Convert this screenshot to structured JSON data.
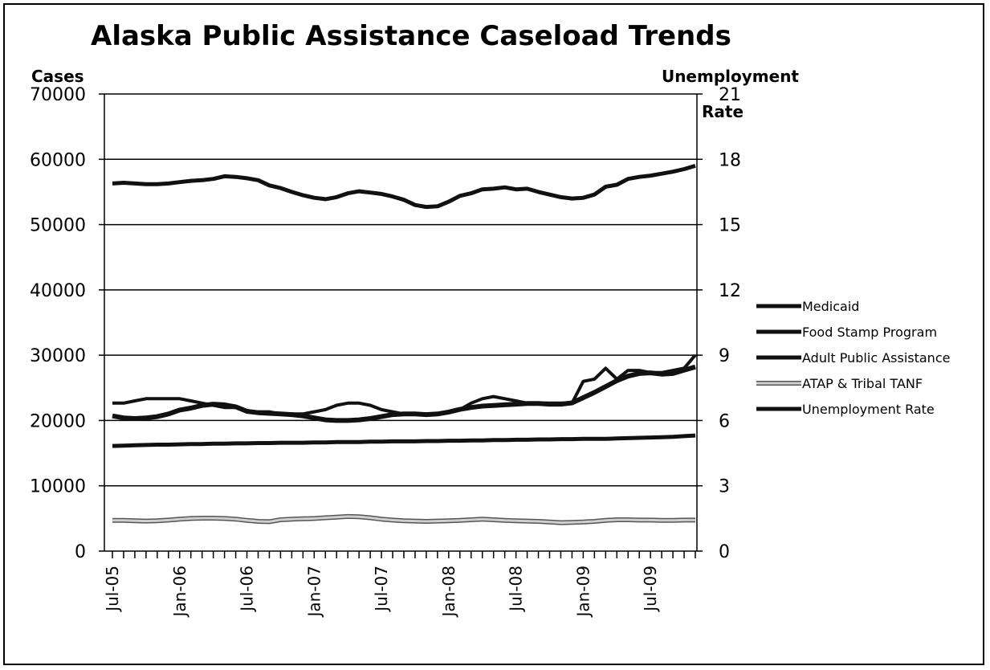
{
  "chart_data": {
    "type": "line",
    "title": "Alaska Public Assistance Caseload Trends",
    "ylabel": "Cases",
    "y2label": [
      "Unemployment",
      "Rate"
    ],
    "ylim": [
      0,
      70000
    ],
    "y2lim": [
      0,
      21
    ],
    "yticks": [
      "0",
      "10000",
      "20000",
      "30000",
      "40000",
      "50000",
      "60000",
      "70000"
    ],
    "y2ticks": [
      "0",
      "3",
      "6",
      "9",
      "12",
      "15",
      "18",
      "21"
    ],
    "xticks": [
      "Jul-05",
      "Jan-06",
      "Jul-06",
      "Jan-07",
      "Jul-07",
      "Jan-08",
      "Jul-08",
      "Jan-09",
      "Jul-09"
    ],
    "x": [
      "Jul-05",
      "Aug-05",
      "Sep-05",
      "Oct-05",
      "Nov-05",
      "Dec-05",
      "Jan-06",
      "Feb-06",
      "Mar-06",
      "Apr-06",
      "May-06",
      "Jun-06",
      "Jul-06",
      "Aug-06",
      "Sep-06",
      "Oct-06",
      "Nov-06",
      "Dec-06",
      "Jan-07",
      "Feb-07",
      "Mar-07",
      "Apr-07",
      "May-07",
      "Jun-07",
      "Jul-07",
      "Aug-07",
      "Sep-07",
      "Oct-07",
      "Nov-07",
      "Dec-07",
      "Jan-08",
      "Feb-08",
      "Mar-08",
      "Apr-08",
      "May-08",
      "Jun-08",
      "Jul-08",
      "Aug-08",
      "Sep-08",
      "Oct-08",
      "Nov-08",
      "Dec-08",
      "Jan-09",
      "Feb-09",
      "Mar-09",
      "Apr-09",
      "May-09",
      "Jun-09",
      "Jul-09",
      "Aug-09",
      "Sep-09",
      "Oct-09",
      "Nov-09"
    ],
    "legend_position": "right",
    "grid": true,
    "series": [
      {
        "name": "Medicaid",
        "axis": "left",
        "color": "#111111",
        "width": 5,
        "values": [
          56300,
          56400,
          56300,
          56200,
          56200,
          56300,
          56500,
          56700,
          56800,
          57000,
          57400,
          57300,
          57100,
          56800,
          56000,
          55600,
          55000,
          54500,
          54100,
          53900,
          54200,
          54800,
          55100,
          54900,
          54700,
          54300,
          53800,
          53000,
          52700,
          52800,
          53500,
          54400,
          54800,
          55400,
          55500,
          55700,
          55400,
          55500,
          55000,
          54600,
          54200,
          54000,
          54100,
          54600,
          55800,
          56100,
          57000,
          57300,
          57500,
          57800,
          58100,
          58500,
          59000
        ]
      },
      {
        "name": "Food Stamp Program",
        "axis": "left",
        "color": "#111111",
        "width": 6,
        "values": [
          20700,
          20400,
          20300,
          20400,
          20600,
          21000,
          21600,
          21900,
          22300,
          22500,
          22400,
          22100,
          21400,
          21200,
          21100,
          21000,
          20900,
          20700,
          20400,
          20100,
          20000,
          20000,
          20100,
          20300,
          20600,
          20900,
          21000,
          21000,
          20900,
          21000,
          21300,
          21700,
          22000,
          22200,
          22300,
          22400,
          22500,
          22600,
          22600,
          22500,
          22500,
          22700,
          23500,
          24300,
          25200,
          26100,
          26800,
          27200,
          27300,
          27100,
          27200,
          27700,
          28200
        ]
      },
      {
        "name": "Adult Public Assistance",
        "axis": "left",
        "color": "#111111",
        "width": 5,
        "values": [
          16100,
          16150,
          16200,
          16250,
          16300,
          16300,
          16350,
          16400,
          16400,
          16450,
          16450,
          16500,
          16500,
          16550,
          16550,
          16600,
          16600,
          16600,
          16650,
          16650,
          16700,
          16700,
          16700,
          16750,
          16750,
          16800,
          16800,
          16800,
          16850,
          16850,
          16900,
          16900,
          16950,
          16950,
          17000,
          17000,
          17050,
          17050,
          17100,
          17100,
          17150,
          17150,
          17200,
          17200,
          17200,
          17250,
          17300,
          17350,
          17400,
          17450,
          17500,
          17600,
          17700
        ]
      },
      {
        "name": "ATAP & Tribal TANF",
        "axis": "left",
        "color": "#8a8a8a",
        "width": 5,
        "values": [
          4700,
          4700,
          4650,
          4600,
          4650,
          4750,
          4900,
          5000,
          5050,
          5050,
          5000,
          4900,
          4700,
          4550,
          4500,
          4800,
          4900,
          4950,
          5000,
          5100,
          5200,
          5300,
          5250,
          5100,
          4900,
          4750,
          4650,
          4600,
          4550,
          4600,
          4650,
          4700,
          4800,
          4900,
          4800,
          4700,
          4650,
          4600,
          4550,
          4450,
          4350,
          4400,
          4450,
          4550,
          4700,
          4800,
          4800,
          4750,
          4750,
          4700,
          4700,
          4750,
          4750
        ]
      },
      {
        "name": "Unemployment Rate",
        "axis": "right",
        "color": "#111111",
        "width": 4,
        "values": [
          6.8,
          6.8,
          6.9,
          7.0,
          7.0,
          7.0,
          7.0,
          6.9,
          6.8,
          6.7,
          6.6,
          6.6,
          6.4,
          6.4,
          6.4,
          6.3,
          6.3,
          6.3,
          6.4,
          6.5,
          6.7,
          6.8,
          6.8,
          6.7,
          6.5,
          6.4,
          6.3,
          6.3,
          6.3,
          6.3,
          6.4,
          6.5,
          6.8,
          7.0,
          7.1,
          7.0,
          6.9,
          6.8,
          6.8,
          6.8,
          6.8,
          6.8,
          7.8,
          7.9,
          8.4,
          7.9,
          8.3,
          8.3,
          8.2,
          8.2,
          8.3,
          8.4,
          9.0
        ]
      }
    ]
  }
}
